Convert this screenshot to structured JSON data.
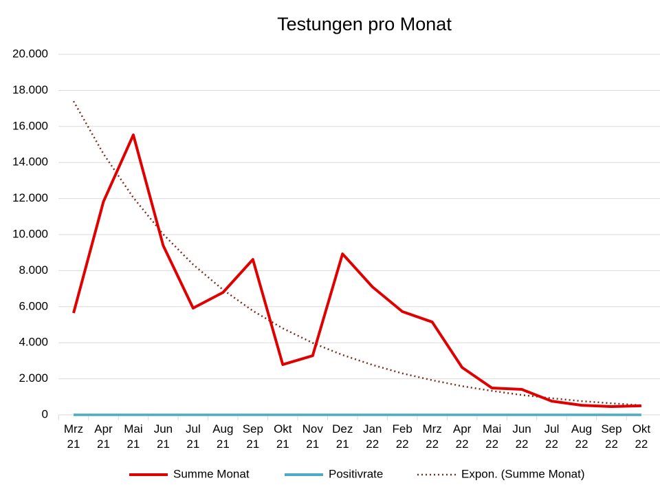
{
  "chart_data": {
    "type": "line",
    "title": "Testungen pro Monat",
    "categories": [
      "Mrz 21",
      "Apr 21",
      "Mai 21",
      "Jun 21",
      "Jul 21",
      "Aug 21",
      "Sep 21",
      "Okt 21",
      "Nov 21",
      "Dez 21",
      "Jan 22",
      "Feb 22",
      "Mrz 22",
      "Apr 22",
      "Mai 22",
      "Jun 22",
      "Jul 22",
      "Aug 22",
      "Sep 22",
      "Okt 22"
    ],
    "series": [
      {
        "name": "Summe Monat",
        "color": "#e00000",
        "values": [
          5650,
          11830,
          15530,
          9390,
          5920,
          6790,
          8620,
          2790,
          3280,
          8930,
          7100,
          5730,
          5150,
          2630,
          1490,
          1410,
          760,
          530,
          460,
          500
        ]
      },
      {
        "name": "Positivrate",
        "color": "#4aacc5",
        "values": [
          0,
          0,
          0,
          0,
          0,
          0,
          0,
          0,
          0,
          0,
          0,
          0,
          0,
          0,
          0,
          0,
          0,
          0,
          0,
          0
        ]
      },
      {
        "name": "Expon. (Summe Monat)",
        "color": "#7b2b1b",
        "dashed": true,
        "values": [
          17400,
          14480,
          12050,
          10020,
          8340,
          6940,
          5770,
          4800,
          3990,
          3320,
          2770,
          2300,
          1920,
          1590,
          1330,
          1100,
          920,
          760,
          640,
          530
        ]
      }
    ],
    "ylim": [
      0,
      20000
    ],
    "yticks": [
      0,
      {
        "value": 2000,
        "label": "2.000"
      },
      {
        "value": 4000,
        "label": "4.000"
      },
      {
        "value": 6000,
        "label": "6.000"
      },
      {
        "value": 8000,
        "label": "8.000"
      },
      {
        "value": 10000,
        "label": "10.000"
      },
      {
        "value": 12000,
        "label": "12.000"
      },
      {
        "value": 14000,
        "label": "14.000"
      },
      {
        "value": 16000,
        "label": "16.000"
      },
      {
        "value": 18000,
        "label": "18.000"
      },
      {
        "value": 20000,
        "label": "20.000"
      }
    ],
    "grid": true,
    "legend": "bottom"
  }
}
